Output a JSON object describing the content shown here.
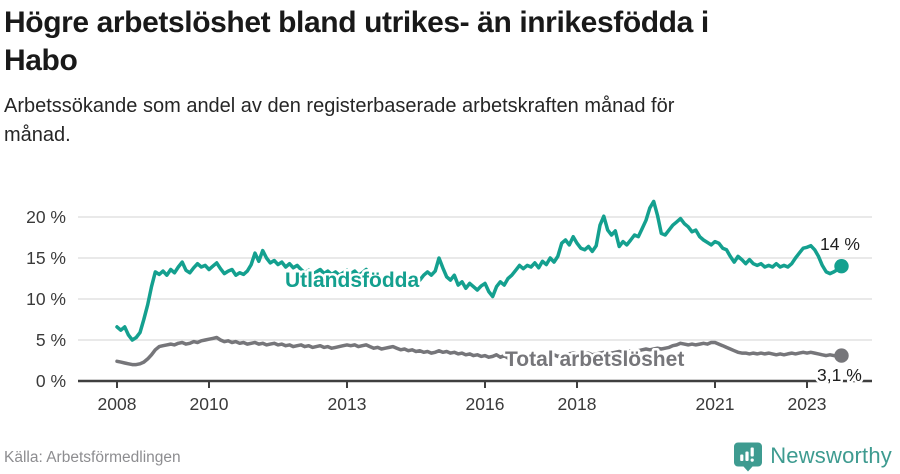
{
  "header": {
    "title_line1": "Högre arbetslöshet bland utrikes- än inrikesfödda i",
    "title_line2": "Habo",
    "subtitle_line1": "Arbetssökande som andel av den registerbaserade arbetskraften månad för",
    "subtitle_line2": "månad."
  },
  "chart_data": {
    "type": "line",
    "title": "Högre arbetslöshet bland utrikes- än inrikesfödda i Habo",
    "subtitle": "Arbetssökande som andel av den registerbaserade arbetskraften månad för månad.",
    "x_unit": "month",
    "x_start": "2008-01",
    "x_end": "2023-10",
    "grid": true,
    "ylim": [
      0,
      22
    ],
    "y_tick_values": [
      0,
      5,
      10,
      15,
      20
    ],
    "y_tick_labels": [
      "0 %",
      "5 %",
      "10 %",
      "15 %",
      "20 %"
    ],
    "x_tick_years": [
      2008,
      2010,
      2013,
      2016,
      2018,
      2021,
      2023
    ],
    "x_tick_labels": [
      "2008",
      "2010",
      "2013",
      "2016",
      "2018",
      "2021",
      "2023"
    ],
    "series": [
      {
        "name": "Utlandsfödda",
        "color": "#14a08f",
        "end_label": "14 %",
        "end_value": 14.0,
        "values": [
          6.6,
          6.2,
          6.6,
          5.6,
          5.0,
          5.3,
          5.9,
          7.5,
          9.3,
          11.5,
          13.3,
          13.0,
          13.4,
          12.9,
          13.6,
          13.2,
          13.9,
          14.5,
          13.5,
          13.2,
          13.8,
          14.3,
          13.9,
          14.1,
          13.6,
          14.0,
          14.4,
          13.7,
          13.1,
          13.4,
          13.6,
          12.9,
          13.2,
          13.0,
          13.4,
          14.2,
          15.6,
          14.6,
          15.9,
          15.0,
          14.4,
          14.7,
          14.2,
          14.5,
          13.9,
          14.3,
          13.8,
          14.1,
          13.6,
          13.2,
          13.5,
          13.0,
          13.3,
          13.6,
          13.1,
          13.4,
          13.0,
          13.3,
          12.9,
          13.2,
          13.5,
          13.1,
          13.4,
          12.9,
          13.2,
          13.6,
          12.8,
          12.4,
          12.7,
          12.2,
          12.6,
          12.9,
          11.8,
          12.3,
          11.4,
          12.0,
          12.4,
          12.1,
          12.6,
          12.3,
          12.9,
          13.3,
          12.9,
          13.4,
          15.0,
          13.8,
          12.7,
          12.3,
          12.9,
          11.7,
          12.1,
          11.3,
          11.9,
          11.5,
          11.1,
          11.6,
          11.9,
          10.9,
          10.3,
          11.5,
          12.1,
          11.7,
          12.5,
          12.9,
          13.5,
          14.1,
          13.7,
          14.1,
          13.9,
          14.4,
          13.8,
          14.6,
          14.2,
          15.0,
          14.5,
          15.2,
          16.8,
          17.2,
          16.6,
          17.6,
          16.8,
          16.2,
          16.0,
          16.4,
          15.8,
          16.5,
          19.0,
          20.1,
          18.4,
          17.8,
          18.3,
          16.4,
          17.0,
          16.6,
          17.2,
          17.8,
          17.6,
          18.6,
          19.6,
          21.1,
          21.9,
          20.2,
          18.0,
          17.8,
          18.4,
          19.0,
          19.4,
          19.8,
          19.2,
          18.8,
          18.2,
          18.4,
          17.6,
          17.2,
          16.9,
          16.6,
          17.0,
          16.8,
          16.2,
          16.0,
          15.2,
          14.5,
          15.2,
          14.8,
          14.3,
          14.8,
          14.3,
          14.1,
          14.3,
          13.9,
          14.1,
          13.9,
          14.3,
          13.9,
          14.1,
          13.9,
          14.3,
          15.0,
          15.6,
          16.2,
          16.3,
          16.5,
          16.0,
          15.2,
          14.1,
          13.3,
          13.1,
          13.3,
          13.6,
          14.0
        ]
      },
      {
        "name": "Total arbetslöshet",
        "color": "#76767a",
        "end_label": "3,1 %",
        "end_value": 3.1,
        "values": [
          2.4,
          2.3,
          2.2,
          2.1,
          2.0,
          2.0,
          2.1,
          2.3,
          2.7,
          3.2,
          3.8,
          4.2,
          4.3,
          4.4,
          4.5,
          4.4,
          4.6,
          4.7,
          4.5,
          4.6,
          4.8,
          4.7,
          4.9,
          5.0,
          5.1,
          5.2,
          5.3,
          5.0,
          4.8,
          4.9,
          4.7,
          4.8,
          4.6,
          4.7,
          4.5,
          4.6,
          4.7,
          4.5,
          4.6,
          4.4,
          4.5,
          4.6,
          4.4,
          4.5,
          4.3,
          4.4,
          4.2,
          4.3,
          4.4,
          4.2,
          4.3,
          4.1,
          4.2,
          4.3,
          4.1,
          4.2,
          4.0,
          4.1,
          4.2,
          4.3,
          4.4,
          4.3,
          4.4,
          4.2,
          4.3,
          4.4,
          4.2,
          4.0,
          4.1,
          3.9,
          4.0,
          4.1,
          4.2,
          4.0,
          3.8,
          3.9,
          3.7,
          3.8,
          3.6,
          3.7,
          3.5,
          3.6,
          3.4,
          3.5,
          3.7,
          3.5,
          3.6,
          3.4,
          3.5,
          3.3,
          3.4,
          3.2,
          3.3,
          3.1,
          3.2,
          3.0,
          3.1,
          2.9,
          3.0,
          3.2,
          2.9,
          3.1,
          2.8,
          3.0,
          3.1,
          2.9,
          3.0,
          3.1,
          3.2,
          3.0,
          3.1,
          3.2,
          3.0,
          3.1,
          3.2,
          3.0,
          3.1,
          3.2,
          3.3,
          3.4,
          3.3,
          3.2,
          3.3,
          3.4,
          3.2,
          3.3,
          3.4,
          3.5,
          3.3,
          3.4,
          3.5,
          3.6,
          3.5,
          3.6,
          3.7,
          3.6,
          3.7,
          3.8,
          3.9,
          3.8,
          3.9,
          4.0,
          3.9,
          4.0,
          4.1,
          4.3,
          4.4,
          4.6,
          4.5,
          4.4,
          4.5,
          4.4,
          4.5,
          4.6,
          4.5,
          4.7,
          4.7,
          4.5,
          4.3,
          4.1,
          3.9,
          3.7,
          3.5,
          3.4,
          3.4,
          3.3,
          3.4,
          3.3,
          3.4,
          3.3,
          3.4,
          3.3,
          3.2,
          3.3,
          3.2,
          3.3,
          3.4,
          3.3,
          3.4,
          3.5,
          3.4,
          3.5,
          3.4,
          3.3,
          3.2,
          3.1,
          3.2,
          3.1,
          3.0,
          3.1
        ]
      }
    ]
  },
  "footer": {
    "source": "Källa: Arbetsförmedlingen",
    "logo_text": "Newsworthy",
    "logo_color": "#3e9b90"
  }
}
